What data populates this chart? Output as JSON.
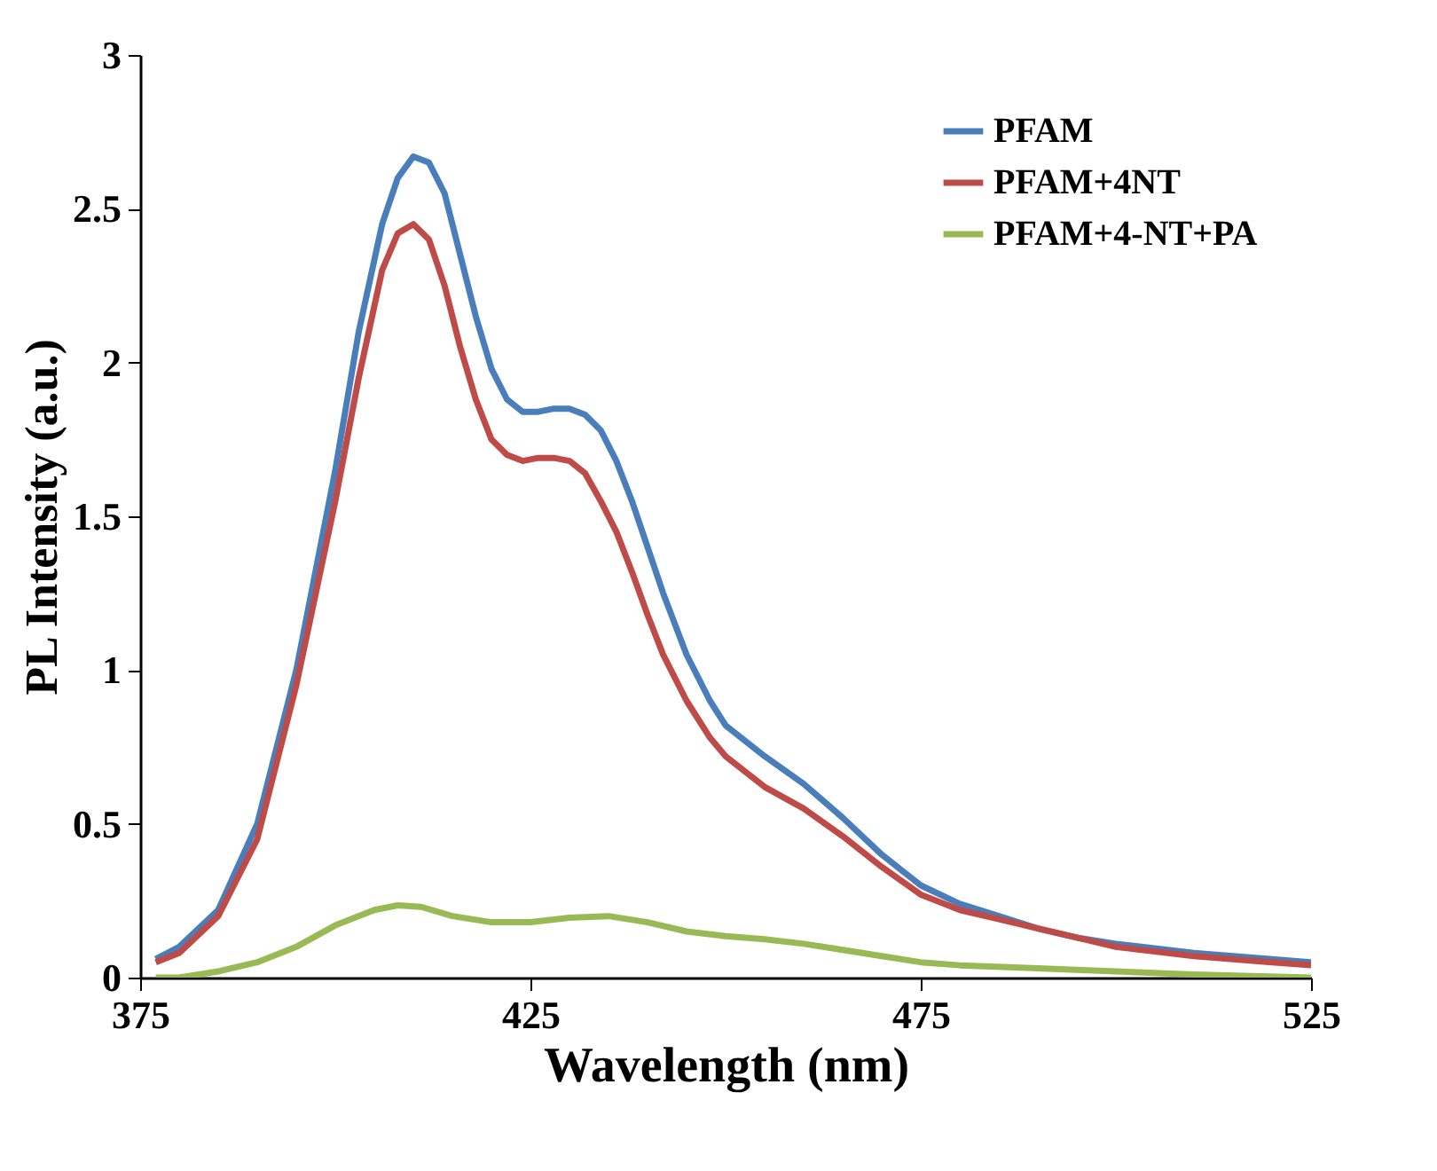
{
  "chart_data": {
    "type": "line",
    "xlabel": "Wavelength (nm)",
    "ylabel": "PL Intensity (a.u.)",
    "xlim": [
      375,
      525
    ],
    "xticks": [
      375,
      425,
      475,
      525
    ],
    "ylim": [
      0,
      3
    ],
    "yticks": [
      0,
      0.5,
      1,
      1.5,
      2,
      2.5,
      3
    ],
    "grid": false,
    "legend": "top right",
    "marker": "none",
    "line_style": "solid",
    "x": [
      377,
      380,
      385,
      390,
      395,
      400,
      403,
      406,
      408,
      410,
      412,
      414,
      416,
      418,
      420,
      422,
      424,
      426,
      428,
      430,
      432,
      434,
      436,
      438,
      440,
      442,
      445,
      448,
      450,
      455,
      460,
      465,
      470,
      475,
      480,
      485,
      490,
      495,
      500,
      510,
      520,
      525
    ],
    "series": [
      {
        "name": "PFAM",
        "color": "#4a7ebb",
        "values": [
          0.06,
          0.1,
          0.22,
          0.5,
          1.0,
          1.65,
          2.1,
          2.45,
          2.6,
          2.67,
          2.65,
          2.55,
          2.35,
          2.15,
          1.98,
          1.88,
          1.84,
          1.84,
          1.85,
          1.85,
          1.83,
          1.78,
          1.68,
          1.55,
          1.4,
          1.25,
          1.05,
          0.9,
          0.82,
          0.72,
          0.63,
          0.52,
          0.4,
          0.3,
          0.24,
          0.2,
          0.16,
          0.13,
          0.11,
          0.08,
          0.06,
          0.05
        ]
      },
      {
        "name": "PFAM+4NT",
        "color": "#be4b48",
        "values": [
          0.05,
          0.08,
          0.2,
          0.45,
          0.95,
          1.55,
          1.95,
          2.3,
          2.42,
          2.45,
          2.4,
          2.25,
          2.05,
          1.88,
          1.75,
          1.7,
          1.68,
          1.69,
          1.69,
          1.68,
          1.64,
          1.55,
          1.45,
          1.32,
          1.18,
          1.05,
          0.9,
          0.78,
          0.72,
          0.62,
          0.55,
          0.46,
          0.36,
          0.27,
          0.22,
          0.19,
          0.16,
          0.13,
          0.1,
          0.07,
          0.05,
          0.04
        ]
      },
      {
        "name": "PFAM+4-NT+PA",
        "color": "#98b954",
        "x": [
          377,
          380,
          385,
          390,
          395,
          400,
          405,
          408,
          411,
          415,
          420,
          425,
          430,
          435,
          440,
          445,
          450,
          455,
          460,
          465,
          470,
          475,
          480,
          490,
          500,
          510,
          525
        ],
        "values": [
          0.0,
          0.0,
          0.02,
          0.05,
          0.1,
          0.17,
          0.22,
          0.235,
          0.23,
          0.2,
          0.18,
          0.18,
          0.195,
          0.2,
          0.18,
          0.15,
          0.135,
          0.125,
          0.11,
          0.09,
          0.07,
          0.05,
          0.04,
          0.03,
          0.02,
          0.01,
          0.0
        ]
      }
    ]
  }
}
